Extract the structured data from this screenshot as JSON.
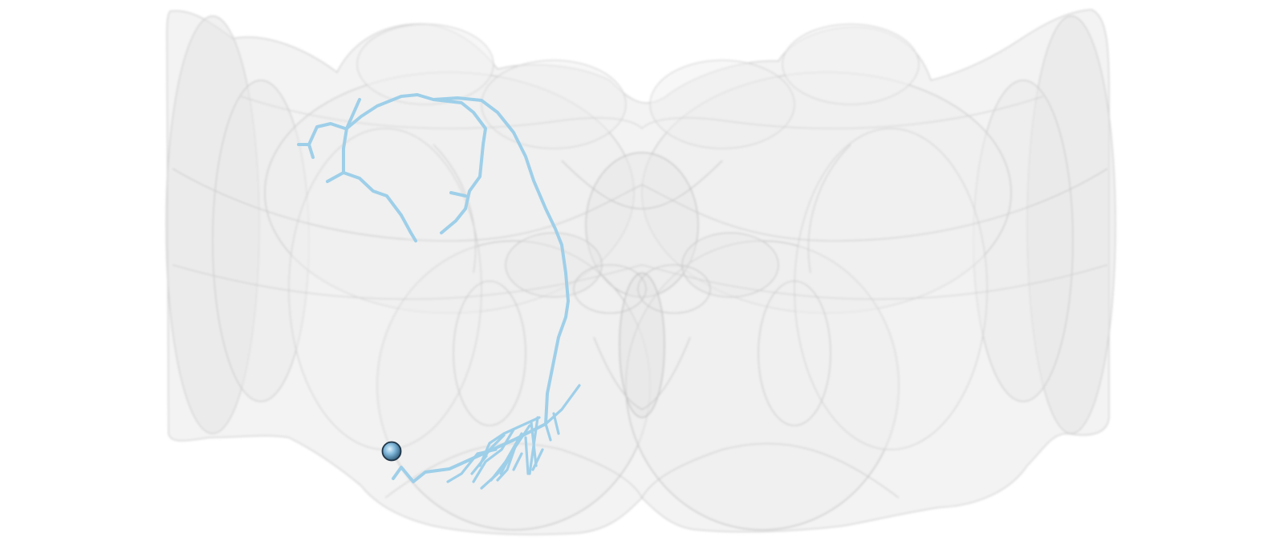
{
  "scene": {
    "background": "#ffffff",
    "mesh_color": "#d9d9d9",
    "mesh_edge_color": "#b4b4b4",
    "neuron_color": "#9ecfe9",
    "soma_color": "#6fa9cf",
    "soma_outline": "#1f3446"
  },
  "neuron": {
    "type": "skeleton",
    "has_soma": true
  }
}
